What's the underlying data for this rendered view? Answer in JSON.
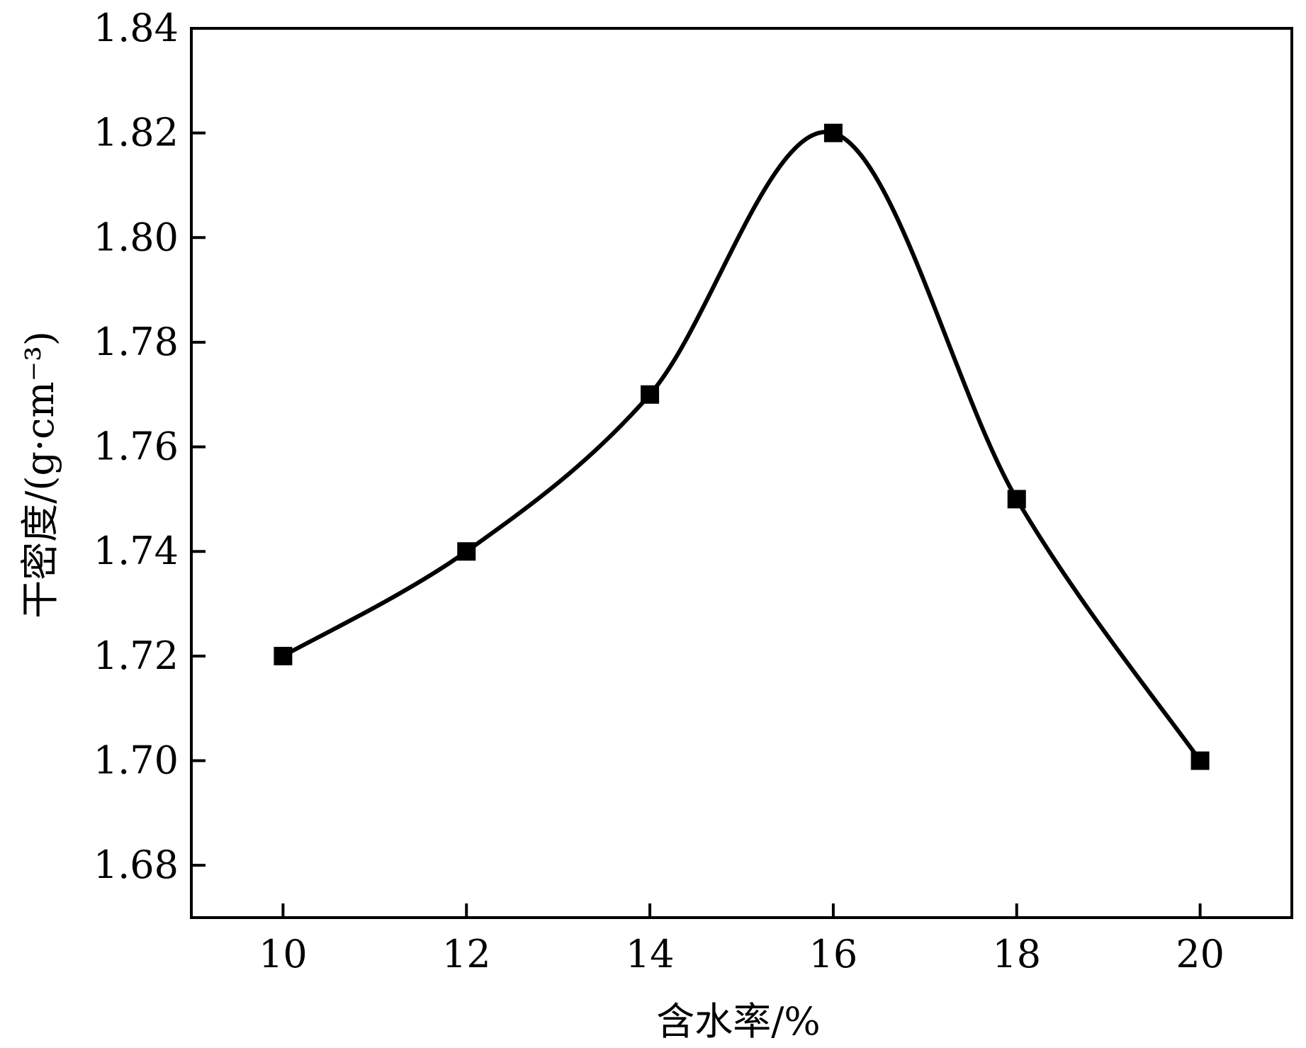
{
  "chart_data": {
    "type": "line",
    "xlabel": "含水率/%",
    "ylabel": "干密度/(g·cm⁻³)",
    "xlim": [
      9,
      21
    ],
    "ylim": [
      1.67,
      1.84
    ],
    "x_ticks": [
      "10",
      "12",
      "14",
      "16",
      "18",
      "20"
    ],
    "y_ticks": [
      "1.68",
      "1.70",
      "1.72",
      "1.74",
      "1.76",
      "1.78",
      "1.80",
      "1.82",
      "1.84"
    ],
    "series": [
      {
        "x": [
          10,
          12,
          14,
          16,
          18,
          20
        ],
        "y": [
          1.72,
          1.74,
          1.77,
          1.82,
          1.75,
          1.7
        ],
        "marker": "square",
        "line": "smooth",
        "color": "#000000"
      }
    ],
    "grid": false,
    "legend": "none"
  }
}
